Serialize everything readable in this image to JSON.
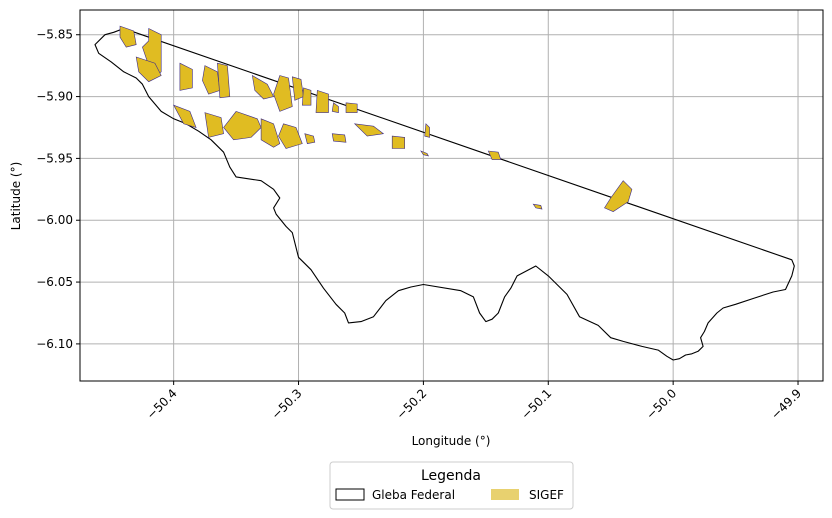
{
  "chart_data": {
    "type": "map",
    "xlabel": "Longitude (°)",
    "ylabel": "Latitude (°)",
    "xlim": [
      -50.475,
      -49.88
    ],
    "ylim": [
      -6.13,
      -5.83
    ],
    "grid": true,
    "x_ticks": [
      {
        "value": -50.4,
        "label": "−50.4"
      },
      {
        "value": -50.3,
        "label": "−50.3"
      },
      {
        "value": -50.2,
        "label": "−50.2"
      },
      {
        "value": -50.1,
        "label": "−50.1"
      },
      {
        "value": -50.0,
        "label": "−50.0"
      },
      {
        "value": -49.9,
        "label": "−49.9"
      }
    ],
    "y_ticks": [
      {
        "value": -5.85,
        "label": "−5.85"
      },
      {
        "value": -5.9,
        "label": "−5.90"
      },
      {
        "value": -5.95,
        "label": "−5.95"
      },
      {
        "value": -6.0,
        "label": "−6.00"
      },
      {
        "value": -6.05,
        "label": "−6.05"
      },
      {
        "value": -6.1,
        "label": "−6.10"
      }
    ],
    "legend": {
      "title": "Legenda",
      "placement": "bottom-center",
      "items": [
        {
          "label": "Gleba Federal",
          "style": "outline",
          "color": "#000000"
        },
        {
          "label": "SIGEF",
          "style": "fill",
          "color": "#e8d16f"
        }
      ]
    },
    "series": [
      {
        "name": "Gleba Federal",
        "kind": "outline",
        "stroke": "#000000",
        "coordinates": [
          [
            -50.44,
            -5.845
          ],
          [
            -49.905,
            -6.032
          ],
          [
            -49.903,
            -6.037
          ],
          [
            -49.905,
            -6.045
          ],
          [
            -49.91,
            -6.056
          ],
          [
            -49.92,
            -6.058
          ],
          [
            -49.935,
            -6.063
          ],
          [
            -49.95,
            -6.068
          ],
          [
            -49.96,
            -6.071
          ],
          [
            -49.965,
            -6.075
          ],
          [
            -49.972,
            -6.083
          ],
          [
            -49.975,
            -6.09
          ],
          [
            -49.978,
            -6.095
          ],
          [
            -49.976,
            -6.102
          ],
          [
            -49.98,
            -6.106
          ],
          [
            -49.985,
            -6.108
          ],
          [
            -49.99,
            -6.109
          ],
          [
            -49.995,
            -6.112
          ],
          [
            -50.0,
            -6.113
          ],
          [
            -50.005,
            -6.11
          ],
          [
            -50.012,
            -6.105
          ],
          [
            -50.025,
            -6.102
          ],
          [
            -50.04,
            -6.098
          ],
          [
            -50.05,
            -6.095
          ],
          [
            -50.06,
            -6.085
          ],
          [
            -50.075,
            -6.078
          ],
          [
            -50.085,
            -6.06
          ],
          [
            -50.1,
            -6.045
          ],
          [
            -50.11,
            -6.037
          ],
          [
            -50.125,
            -6.045
          ],
          [
            -50.13,
            -6.055
          ],
          [
            -50.135,
            -6.062
          ],
          [
            -50.14,
            -6.075
          ],
          [
            -50.145,
            -6.08
          ],
          [
            -50.15,
            -6.082
          ],
          [
            -50.155,
            -6.075
          ],
          [
            -50.16,
            -6.062
          ],
          [
            -50.17,
            -6.057
          ],
          [
            -50.2,
            -6.052
          ],
          [
            -50.21,
            -6.054
          ],
          [
            -50.22,
            -6.057
          ],
          [
            -50.23,
            -6.065
          ],
          [
            -50.24,
            -6.078
          ],
          [
            -50.25,
            -6.082
          ],
          [
            -50.26,
            -6.083
          ],
          [
            -50.263,
            -6.075
          ],
          [
            -50.27,
            -6.068
          ],
          [
            -50.28,
            -6.055
          ],
          [
            -50.29,
            -6.04
          ],
          [
            -50.3,
            -6.03
          ],
          [
            -50.305,
            -6.01
          ],
          [
            -50.31,
            -6.005
          ],
          [
            -50.318,
            -5.995
          ],
          [
            -50.32,
            -5.99
          ],
          [
            -50.315,
            -5.982
          ],
          [
            -50.32,
            -5.975
          ],
          [
            -50.33,
            -5.968
          ],
          [
            -50.35,
            -5.965
          ],
          [
            -50.355,
            -5.957
          ],
          [
            -50.36,
            -5.945
          ],
          [
            -50.37,
            -5.935
          ],
          [
            -50.38,
            -5.928
          ],
          [
            -50.39,
            -5.922
          ],
          [
            -50.4,
            -5.918
          ],
          [
            -50.41,
            -5.912
          ],
          [
            -50.42,
            -5.9
          ],
          [
            -50.425,
            -5.89
          ],
          [
            -50.43,
            -5.885
          ],
          [
            -50.44,
            -5.88
          ],
          [
            -50.45,
            -5.872
          ],
          [
            -50.46,
            -5.865
          ],
          [
            -50.463,
            -5.858
          ],
          [
            -50.455,
            -5.85
          ],
          [
            -50.448,
            -5.848
          ],
          [
            -50.44,
            -5.845
          ]
        ]
      },
      {
        "name": "SIGEF",
        "kind": "fill",
        "fill": "#e0bc22",
        "stroke": "#3d2c8a",
        "polygons": [
          [
            [
              -50.443,
              -5.843
            ],
            [
              -50.432,
              -5.847
            ],
            [
              -50.43,
              -5.858
            ],
            [
              -50.438,
              -5.86
            ],
            [
              -50.443,
              -5.852
            ]
          ],
          [
            [
              -50.42,
              -5.845
            ],
            [
              -50.41,
              -5.85
            ],
            [
              -50.41,
              -5.88
            ],
            [
              -50.415,
              -5.884
            ],
            [
              -50.42,
              -5.875
            ],
            [
              -50.425,
              -5.86
            ],
            [
              -50.42,
              -5.855
            ]
          ],
          [
            [
              -50.43,
              -5.868
            ],
            [
              -50.415,
              -5.873
            ],
            [
              -50.41,
              -5.883
            ],
            [
              -50.42,
              -5.888
            ],
            [
              -50.428,
              -5.88
            ]
          ],
          [
            [
              -50.395,
              -5.873
            ],
            [
              -50.385,
              -5.878
            ],
            [
              -50.385,
              -5.893
            ],
            [
              -50.395,
              -5.895
            ]
          ],
          [
            [
              -50.375,
              -5.875
            ],
            [
              -50.365,
              -5.88
            ],
            [
              -50.363,
              -5.895
            ],
            [
              -50.372,
              -5.898
            ],
            [
              -50.377,
              -5.887
            ]
          ],
          [
            [
              -50.365,
              -5.873
            ],
            [
              -50.357,
              -5.875
            ],
            [
              -50.355,
              -5.9
            ],
            [
              -50.363,
              -5.901
            ]
          ],
          [
            [
              -50.337,
              -5.883
            ],
            [
              -50.325,
              -5.89
            ],
            [
              -50.32,
              -5.9
            ],
            [
              -50.328,
              -5.902
            ],
            [
              -50.335,
              -5.895
            ]
          ],
          [
            [
              -50.315,
              -5.883
            ],
            [
              -50.308,
              -5.885
            ],
            [
              -50.305,
              -5.908
            ],
            [
              -50.315,
              -5.912
            ],
            [
              -50.32,
              -5.898
            ]
          ],
          [
            [
              -50.305,
              -5.884
            ],
            [
              -50.298,
              -5.886
            ],
            [
              -50.296,
              -5.9
            ],
            [
              -50.303,
              -5.903
            ]
          ],
          [
            [
              -50.296,
              -5.893
            ],
            [
              -50.29,
              -5.895
            ],
            [
              -50.29,
              -5.907
            ],
            [
              -50.297,
              -5.907
            ]
          ],
          [
            [
              -50.285,
              -5.895
            ],
            [
              -50.276,
              -5.898
            ],
            [
              -50.276,
              -5.913
            ],
            [
              -50.286,
              -5.913
            ]
          ],
          [
            [
              -50.272,
              -5.905
            ],
            [
              -50.268,
              -5.908
            ],
            [
              -50.268,
              -5.913
            ],
            [
              -50.273,
              -5.912
            ]
          ],
          [
            [
              -50.262,
              -5.905
            ],
            [
              -50.253,
              -5.906
            ],
            [
              -50.253,
              -5.913
            ],
            [
              -50.262,
              -5.913
            ]
          ],
          [
            [
              -50.4,
              -5.907
            ],
            [
              -50.387,
              -5.912
            ],
            [
              -50.382,
              -5.925
            ],
            [
              -50.392,
              -5.922
            ]
          ],
          [
            [
              -50.375,
              -5.913
            ],
            [
              -50.362,
              -5.917
            ],
            [
              -50.36,
              -5.93
            ],
            [
              -50.372,
              -5.933
            ]
          ],
          [
            [
              -50.35,
              -5.912
            ],
            [
              -50.333,
              -5.918
            ],
            [
              -50.33,
              -5.925
            ],
            [
              -50.338,
              -5.933
            ],
            [
              -50.352,
              -5.935
            ],
            [
              -50.36,
              -5.925
            ]
          ],
          [
            [
              -50.33,
              -5.918
            ],
            [
              -50.32,
              -5.922
            ],
            [
              -50.315,
              -5.938
            ],
            [
              -50.32,
              -5.941
            ],
            [
              -50.33,
              -5.935
            ]
          ],
          [
            [
              -50.312,
              -5.922
            ],
            [
              -50.302,
              -5.925
            ],
            [
              -50.297,
              -5.938
            ],
            [
              -50.31,
              -5.942
            ],
            [
              -50.316,
              -5.932
            ]
          ],
          [
            [
              -50.295,
              -5.93
            ],
            [
              -50.288,
              -5.932
            ],
            [
              -50.287,
              -5.937
            ],
            [
              -50.293,
              -5.938
            ]
          ],
          [
            [
              -50.273,
              -5.93
            ],
            [
              -50.263,
              -5.931
            ],
            [
              -50.262,
              -5.937
            ],
            [
              -50.272,
              -5.936
            ]
          ],
          [
            [
              -50.255,
              -5.922
            ],
            [
              -50.24,
              -5.924
            ],
            [
              -50.232,
              -5.93
            ],
            [
              -50.245,
              -5.932
            ]
          ],
          [
            [
              -50.225,
              -5.932
            ],
            [
              -50.215,
              -5.933
            ],
            [
              -50.215,
              -5.942
            ],
            [
              -50.225,
              -5.942
            ]
          ],
          [
            [
              -50.198,
              -5.922
            ],
            [
              -50.195,
              -5.925
            ],
            [
              -50.195,
              -5.933
            ],
            [
              -50.199,
              -5.932
            ]
          ],
          [
            [
              -50.202,
              -5.944
            ],
            [
              -50.197,
              -5.946
            ],
            [
              -50.196,
              -5.948
            ],
            [
              -50.2,
              -5.947
            ]
          ],
          [
            [
              -50.148,
              -5.944
            ],
            [
              -50.14,
              -5.945
            ],
            [
              -50.138,
              -5.951
            ],
            [
              -50.145,
              -5.951
            ]
          ],
          [
            [
              -50.112,
              -5.987
            ],
            [
              -50.106,
              -5.988
            ],
            [
              -50.105,
              -5.991
            ],
            [
              -50.11,
              -5.99
            ]
          ],
          [
            [
              -50.04,
              -5.968
            ],
            [
              -50.05,
              -5.982
            ],
            [
              -50.055,
              -5.99
            ],
            [
              -50.048,
              -5.993
            ],
            [
              -50.036,
              -5.985
            ],
            [
              -50.033,
              -5.975
            ]
          ]
        ]
      }
    ]
  }
}
